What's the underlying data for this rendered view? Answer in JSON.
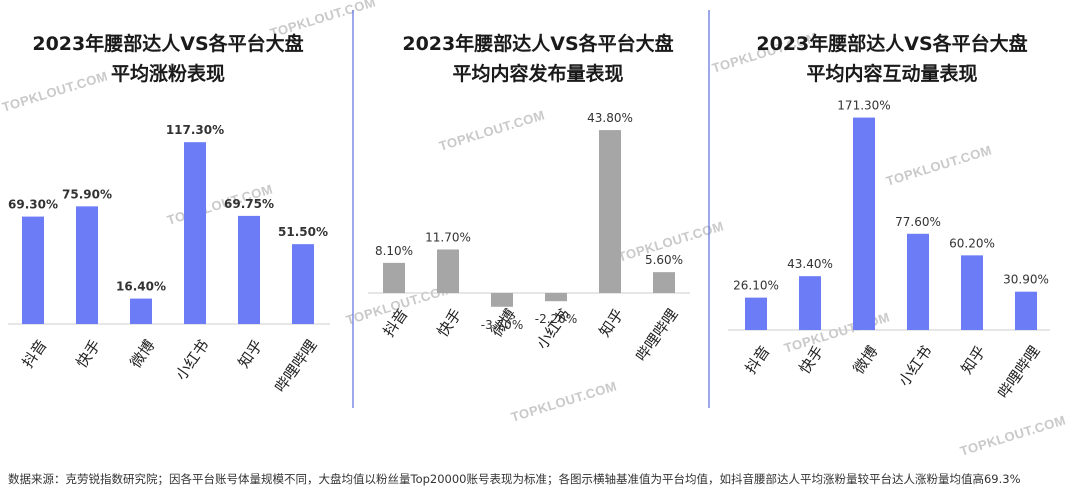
{
  "watermark": "TOPKLOUT.COM",
  "footnote": "数据来源：克劳锐指数研究院；因各平台账号体量规模不同，大盘均值以粉丝量Top20000账号表现为标准；各图示横轴基准值为平台均值，如抖音腰部达人平均涨粉量较平台达人涨粉量均值高69.3%",
  "colors": {
    "blue_bar": "#6b7cf6",
    "gray_bar": "#a6a6a6",
    "divider": "#5b6fe0",
    "axis": "#cccccc"
  },
  "chart_data": [
    {
      "type": "bar",
      "title": [
        "2023年腰部达人VS各平台大盘",
        "平均涨粉表现"
      ],
      "categories": [
        "抖音",
        "快手",
        "微博",
        "小红书",
        "知乎",
        "哔哩哔哩"
      ],
      "values": [
        69.3,
        75.9,
        16.4,
        117.3,
        69.75,
        51.5
      ],
      "labels": [
        "69.30%",
        "75.90%",
        "16.40%",
        "117.30%",
        "69.75%",
        "51.50%"
      ],
      "color": "#6b7cf6",
      "label_bold": true,
      "xlabel": "",
      "ylabel": ""
    },
    {
      "type": "bar",
      "title": [
        "2023年腰部达人VS各平台大盘",
        "平均内容发布量表现"
      ],
      "categories": [
        "抖音",
        "快手",
        "微博",
        "小红书",
        "知乎",
        "哔哩哔哩"
      ],
      "values": [
        8.1,
        11.7,
        -3.7,
        -2.2,
        43.8,
        5.6
      ],
      "labels": [
        "8.10%",
        "11.70%",
        "-3.70%",
        "-2.20%",
        "43.80%",
        "5.60%"
      ],
      "color": "#a6a6a6",
      "label_bold": false,
      "xlabel": "",
      "ylabel": ""
    },
    {
      "type": "bar",
      "title": [
        "2023年腰部达人VS各平台大盘",
        "平均内容互动量表现"
      ],
      "categories": [
        "抖音",
        "快手",
        "微博",
        "小红书",
        "知乎",
        "哔哩哔哩"
      ],
      "values": [
        26.1,
        43.4,
        171.3,
        77.6,
        60.2,
        30.9
      ],
      "labels": [
        "26.10%",
        "43.40%",
        "171.30%",
        "77.60%",
        "60.20%",
        "30.90%"
      ],
      "color": "#6b7cf6",
      "label_bold": false,
      "xlabel": "",
      "ylabel": ""
    }
  ]
}
